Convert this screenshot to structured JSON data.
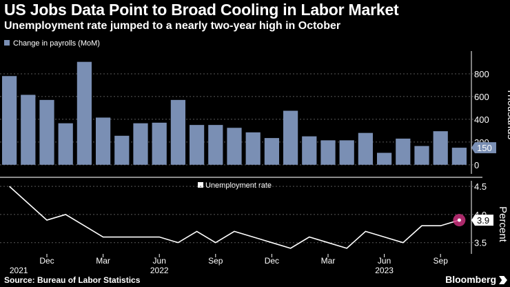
{
  "title": "US Jobs Data Point to Broad Cooling in Labor Market",
  "subtitle": "Unemployment rate jumped to a nearly two-year high in October",
  "source": "Source: Bureau of Labor Statistics",
  "brand": "Bloomberg",
  "colors": {
    "background": "#000000",
    "bar": "#7a8fb4",
    "line": "#ffffff",
    "grid": "#5a5a5a",
    "highlight": "#d63384",
    "divider": "#8c8c8c"
  },
  "chart_data": [
    {
      "type": "bar",
      "legend": "Change in payrolls (MoM)",
      "ylabel": "Thousands",
      "ylim": [
        -80,
        1000
      ],
      "yticks": [
        0,
        200,
        400,
        600,
        800
      ],
      "x": [
        "2021-10",
        "2021-11",
        "2021-12",
        "2022-01",
        "2022-02",
        "2022-03",
        "2022-04",
        "2022-05",
        "2022-06",
        "2022-07",
        "2022-08",
        "2022-09",
        "2022-10",
        "2022-11",
        "2022-12",
        "2023-01",
        "2023-02",
        "2023-03",
        "2023-04",
        "2023-05",
        "2023-06",
        "2023-07",
        "2023-08",
        "2023-09",
        "2023-10"
      ],
      "values": [
        780,
        615,
        570,
        365,
        905,
        415,
        255,
        365,
        370,
        570,
        350,
        350,
        325,
        285,
        235,
        475,
        250,
        215,
        215,
        280,
        105,
        230,
        165,
        295,
        150
      ],
      "last_value_label": "150"
    },
    {
      "type": "line",
      "legend": "Unemployment rate",
      "ylabel": "Percent",
      "ylim": [
        3.3,
        4.6
      ],
      "yticks": [
        "3.5",
        "4.0",
        "4.5"
      ],
      "x": [
        "2021-10",
        "2021-11",
        "2021-12",
        "2022-01",
        "2022-02",
        "2022-03",
        "2022-04",
        "2022-05",
        "2022-06",
        "2022-07",
        "2022-08",
        "2022-09",
        "2022-10",
        "2022-11",
        "2022-12",
        "2023-01",
        "2023-02",
        "2023-03",
        "2023-04",
        "2023-05",
        "2023-06",
        "2023-07",
        "2023-08",
        "2023-09",
        "2023-10"
      ],
      "values": [
        4.5,
        4.2,
        3.9,
        4.0,
        3.8,
        3.6,
        3.6,
        3.6,
        3.6,
        3.5,
        3.7,
        3.5,
        3.7,
        3.6,
        3.5,
        3.4,
        3.6,
        3.5,
        3.4,
        3.7,
        3.6,
        3.5,
        3.8,
        3.8,
        3.9
      ],
      "last_value_label": "3.9"
    }
  ],
  "x_axis": {
    "tick_labels": [
      "Dec",
      "Mar",
      "Jun",
      "Sep",
      "Dec",
      "Mar",
      "Jun",
      "Sep"
    ],
    "tick_index": [
      2,
      5,
      8,
      11,
      14,
      17,
      20,
      23
    ],
    "year_labels": [
      "2021",
      "2022",
      "2023"
    ],
    "year_index": [
      0.5,
      8,
      20
    ]
  }
}
